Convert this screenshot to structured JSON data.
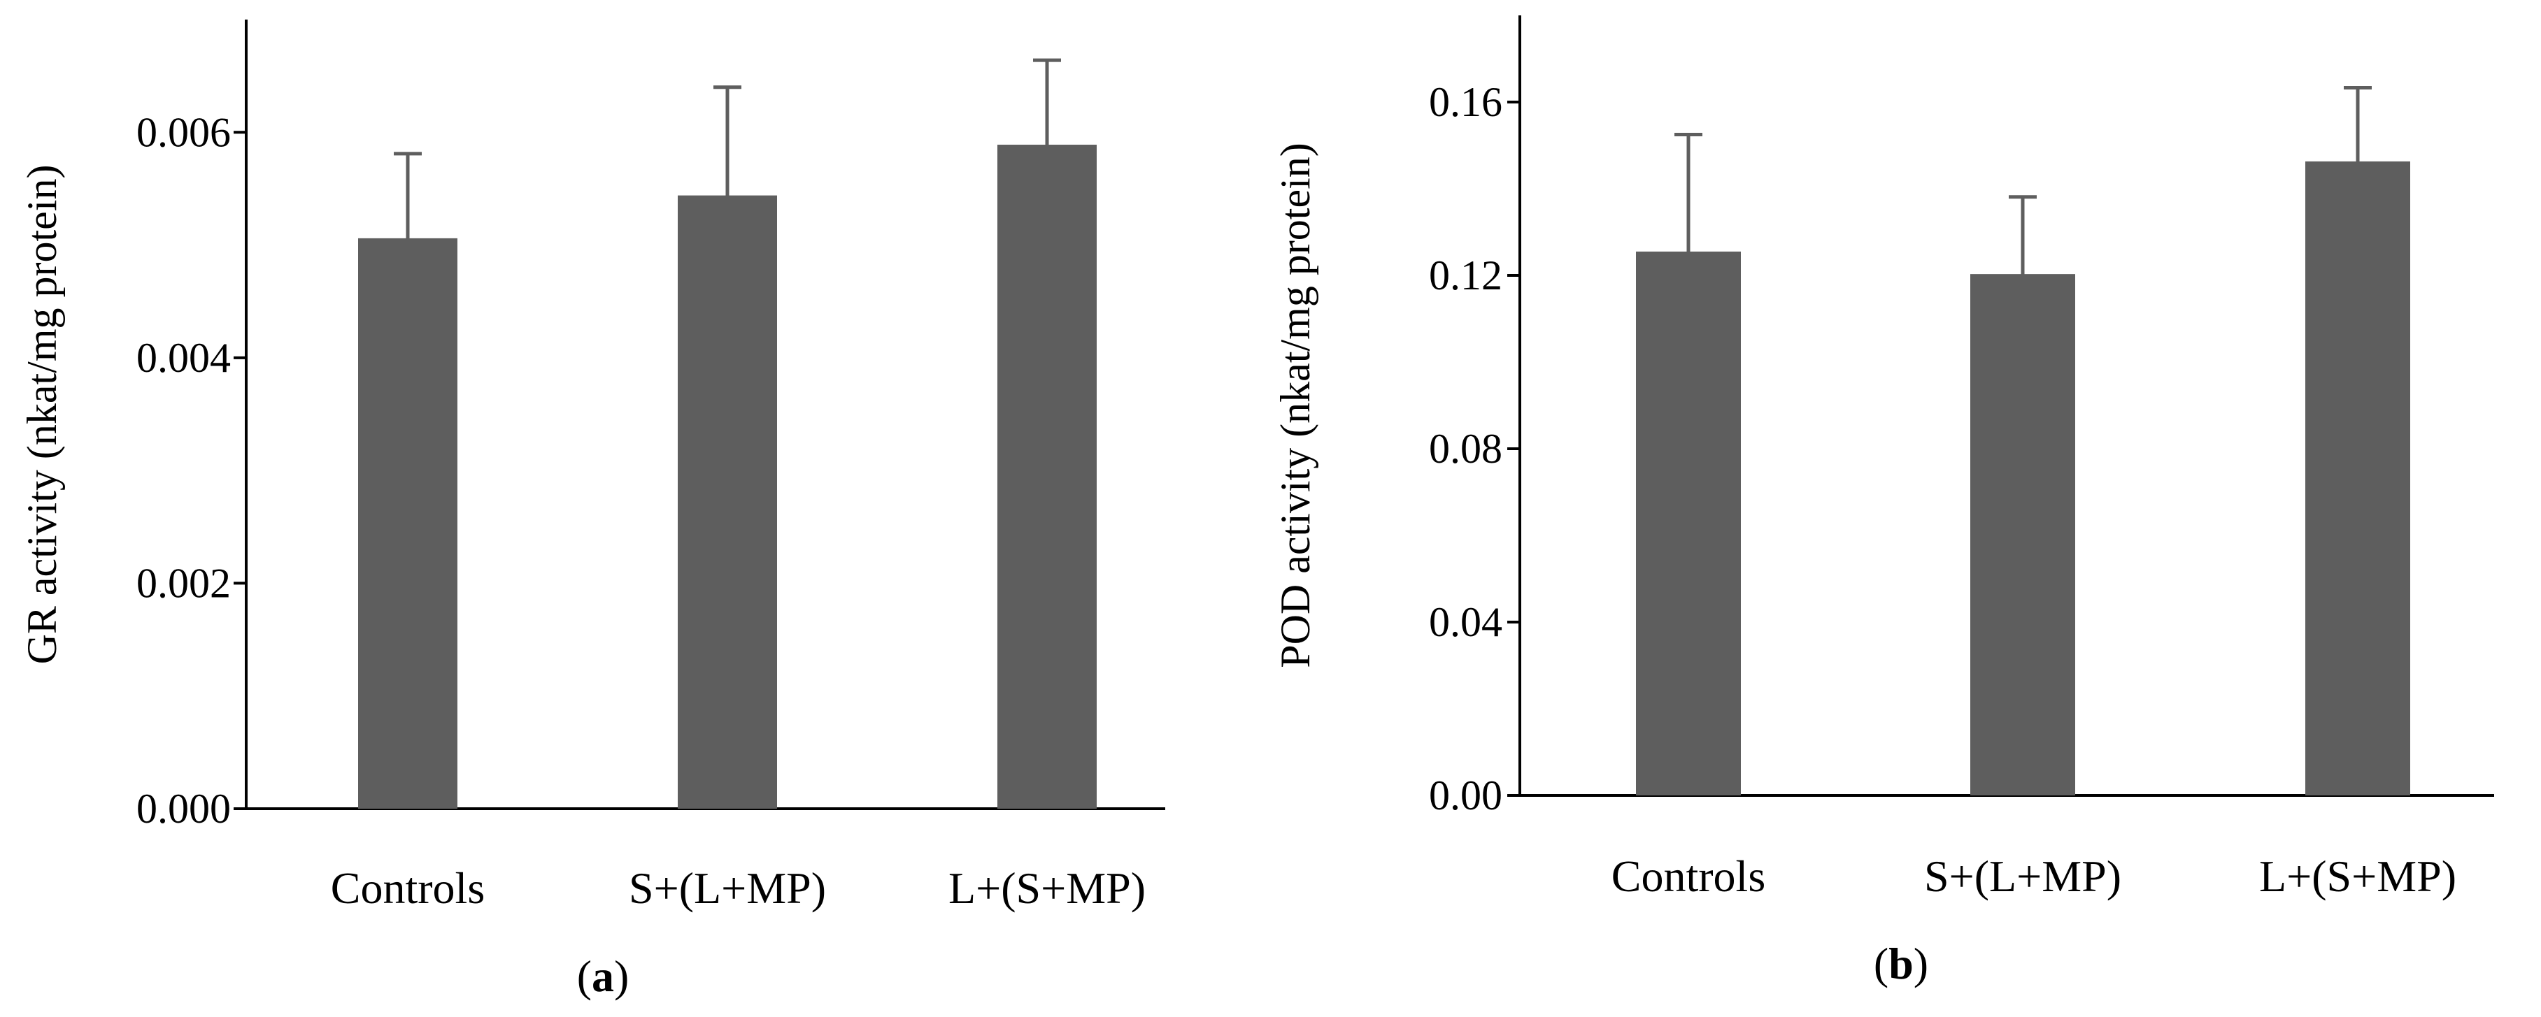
{
  "colors": {
    "bar": "#5e5e5e",
    "error_bar": "#5e5e5e",
    "axis": "#000000"
  },
  "chart_data": [
    {
      "type": "bar",
      "panel_label": "a",
      "title": "",
      "xlabel": "",
      "ylabel": "GR activity (nkat/mg protein)",
      "ylim": [
        0,
        0.007
      ],
      "yticks": [
        0.0,
        0.002,
        0.004,
        0.006
      ],
      "ytick_labels": [
        "0.000",
        "0.002",
        "0.004",
        "0.006"
      ],
      "categories": [
        "Controls",
        "S+(L+MP)",
        "L+(S+MP)"
      ],
      "values": [
        0.00506,
        0.00544,
        0.00589
      ],
      "errors": [
        0.00075,
        0.00096,
        0.00075
      ]
    },
    {
      "type": "bar",
      "panel_label": "b",
      "title": "",
      "xlabel": "",
      "ylabel": "POD activity (nkat/mg protein)",
      "ylim": [
        0,
        0.18
      ],
      "yticks": [
        0.0,
        0.04,
        0.08,
        0.12,
        0.16
      ],
      "ytick_labels": [
        "0.00",
        "0.04",
        "0.08",
        "0.12",
        "0.16"
      ],
      "categories": [
        "Controls",
        "S+(L+MP)",
        "L+(S+MP)"
      ],
      "values": [
        0.1255,
        0.1203,
        0.1463
      ],
      "errors": [
        0.027,
        0.0178,
        0.017
      ]
    }
  ]
}
